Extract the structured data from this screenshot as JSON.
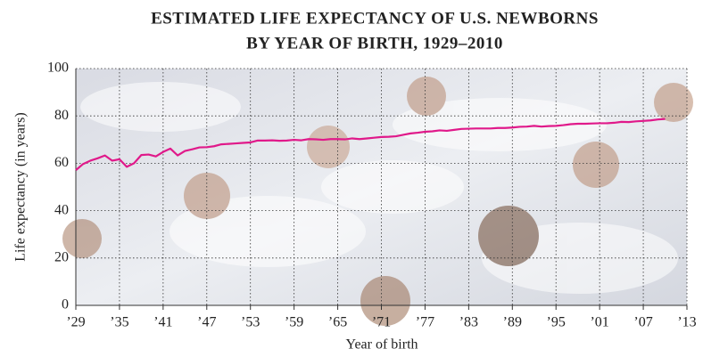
{
  "chart_data": {
    "type": "line",
    "title": [
      "ESTIMATED LIFE EXPECTANCY OF U.S. NEWBORNS",
      "BY YEAR OF BIRTH, 1929–2010"
    ],
    "xlabel": "Year of birth",
    "ylabel": "Life expectancy (in years)",
    "x": [
      1929,
      1930,
      1931,
      1932,
      1933,
      1934,
      1935,
      1936,
      1937,
      1938,
      1939,
      1940,
      1941,
      1942,
      1943,
      1944,
      1945,
      1946,
      1947,
      1948,
      1949,
      1950,
      1951,
      1952,
      1953,
      1954,
      1955,
      1956,
      1957,
      1958,
      1959,
      1960,
      1961,
      1962,
      1963,
      1964,
      1965,
      1966,
      1967,
      1968,
      1969,
      1970,
      1971,
      1972,
      1973,
      1974,
      1975,
      1976,
      1977,
      1978,
      1979,
      1980,
      1981,
      1982,
      1983,
      1984,
      1985,
      1986,
      1987,
      1988,
      1989,
      1990,
      1991,
      1992,
      1993,
      1994,
      1995,
      1996,
      1997,
      1998,
      1999,
      2000,
      2001,
      2002,
      2003,
      2004,
      2005,
      2006,
      2007,
      2008,
      2009,
      2010
    ],
    "values": [
      57.1,
      59.7,
      61.1,
      62.1,
      63.3,
      61.1,
      61.7,
      58.5,
      60.0,
      63.5,
      63.7,
      62.9,
      64.8,
      66.2,
      63.3,
      65.2,
      65.9,
      66.7,
      66.8,
      67.2,
      68.0,
      68.2,
      68.4,
      68.6,
      68.8,
      69.6,
      69.6,
      69.7,
      69.5,
      69.6,
      69.9,
      69.7,
      70.2,
      70.1,
      69.9,
      70.2,
      70.2,
      70.1,
      70.5,
      70.2,
      70.5,
      70.8,
      71.1,
      71.2,
      71.4,
      72.0,
      72.6,
      72.9,
      73.3,
      73.5,
      73.9,
      73.7,
      74.1,
      74.5,
      74.6,
      74.7,
      74.7,
      74.7,
      74.9,
      74.9,
      75.1,
      75.4,
      75.5,
      75.8,
      75.5,
      75.7,
      75.8,
      76.1,
      76.5,
      76.7,
      76.7,
      76.8,
      76.9,
      76.9,
      77.1,
      77.5,
      77.4,
      77.7,
      77.9,
      78.1,
      78.5,
      78.7
    ],
    "color": "#e0198a",
    "xlim": [
      1929,
      2013
    ],
    "xticks": [
      {
        "value": 1929,
        "label": "’29"
      },
      {
        "value": 1935,
        "label": "’35"
      },
      {
        "value": 1941,
        "label": "’41"
      },
      {
        "value": 1947,
        "label": "’47"
      },
      {
        "value": 1953,
        "label": "’53"
      },
      {
        "value": 1959,
        "label": "’59"
      },
      {
        "value": 1965,
        "label": "’65"
      },
      {
        "value": 1971,
        "label": "’71"
      },
      {
        "value": 1977,
        "label": "’77"
      },
      {
        "value": 1983,
        "label": "’83"
      },
      {
        "value": 1989,
        "label": "’89"
      },
      {
        "value": 1995,
        "label": "’95"
      },
      {
        "value": 2001,
        "label": "’01"
      },
      {
        "value": 2007,
        "label": "’07"
      },
      {
        "value": 2013,
        "label": "’13"
      }
    ],
    "ylim": [
      0,
      100
    ],
    "yticks": [
      0,
      20,
      40,
      60,
      80,
      100
    ],
    "grid": true
  }
}
